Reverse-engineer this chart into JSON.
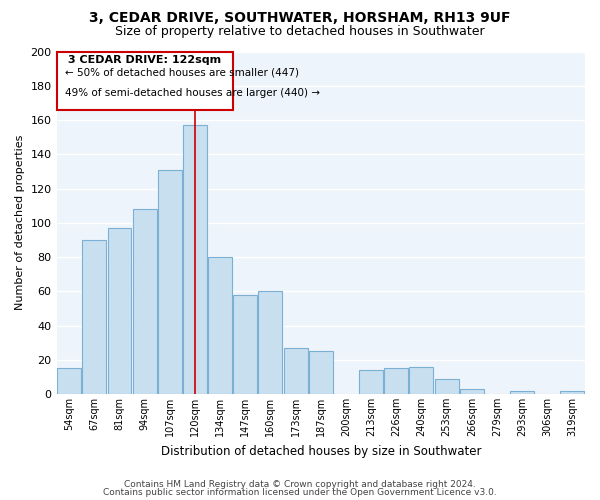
{
  "title": "3, CEDAR DRIVE, SOUTHWATER, HORSHAM, RH13 9UF",
  "subtitle": "Size of property relative to detached houses in Southwater",
  "xlabel": "Distribution of detached houses by size in Southwater",
  "ylabel": "Number of detached properties",
  "categories": [
    "54sqm",
    "67sqm",
    "81sqm",
    "94sqm",
    "107sqm",
    "120sqm",
    "134sqm",
    "147sqm",
    "160sqm",
    "173sqm",
    "187sqm",
    "200sqm",
    "213sqm",
    "226sqm",
    "240sqm",
    "253sqm",
    "266sqm",
    "279sqm",
    "293sqm",
    "306sqm",
    "319sqm"
  ],
  "values": [
    15,
    90,
    97,
    108,
    131,
    157,
    80,
    58,
    60,
    27,
    25,
    0,
    14,
    15,
    16,
    9,
    3,
    0,
    2,
    0,
    2
  ],
  "bar_fill_color": "#c8dff0",
  "bar_edge_color": "#7bafd4",
  "vline_index": 5,
  "vline_color": "#cc0000",
  "annotation_title": "3 CEDAR DRIVE: 122sqm",
  "annotation_line1": "← 50% of detached houses are smaller (447)",
  "annotation_line2": "49% of semi-detached houses are larger (440) →",
  "box_edge_color": "#cc0000",
  "ylim": [
    0,
    200
  ],
  "yticks": [
    0,
    20,
    40,
    60,
    80,
    100,
    120,
    140,
    160,
    180,
    200
  ],
  "footer1": "Contains HM Land Registry data © Crown copyright and database right 2024.",
  "footer2": "Contains public sector information licensed under the Open Government Licence v3.0.",
  "background_color": "#ffffff",
  "plot_bg_color": "#eef4fb",
  "grid_color": "#ffffff"
}
